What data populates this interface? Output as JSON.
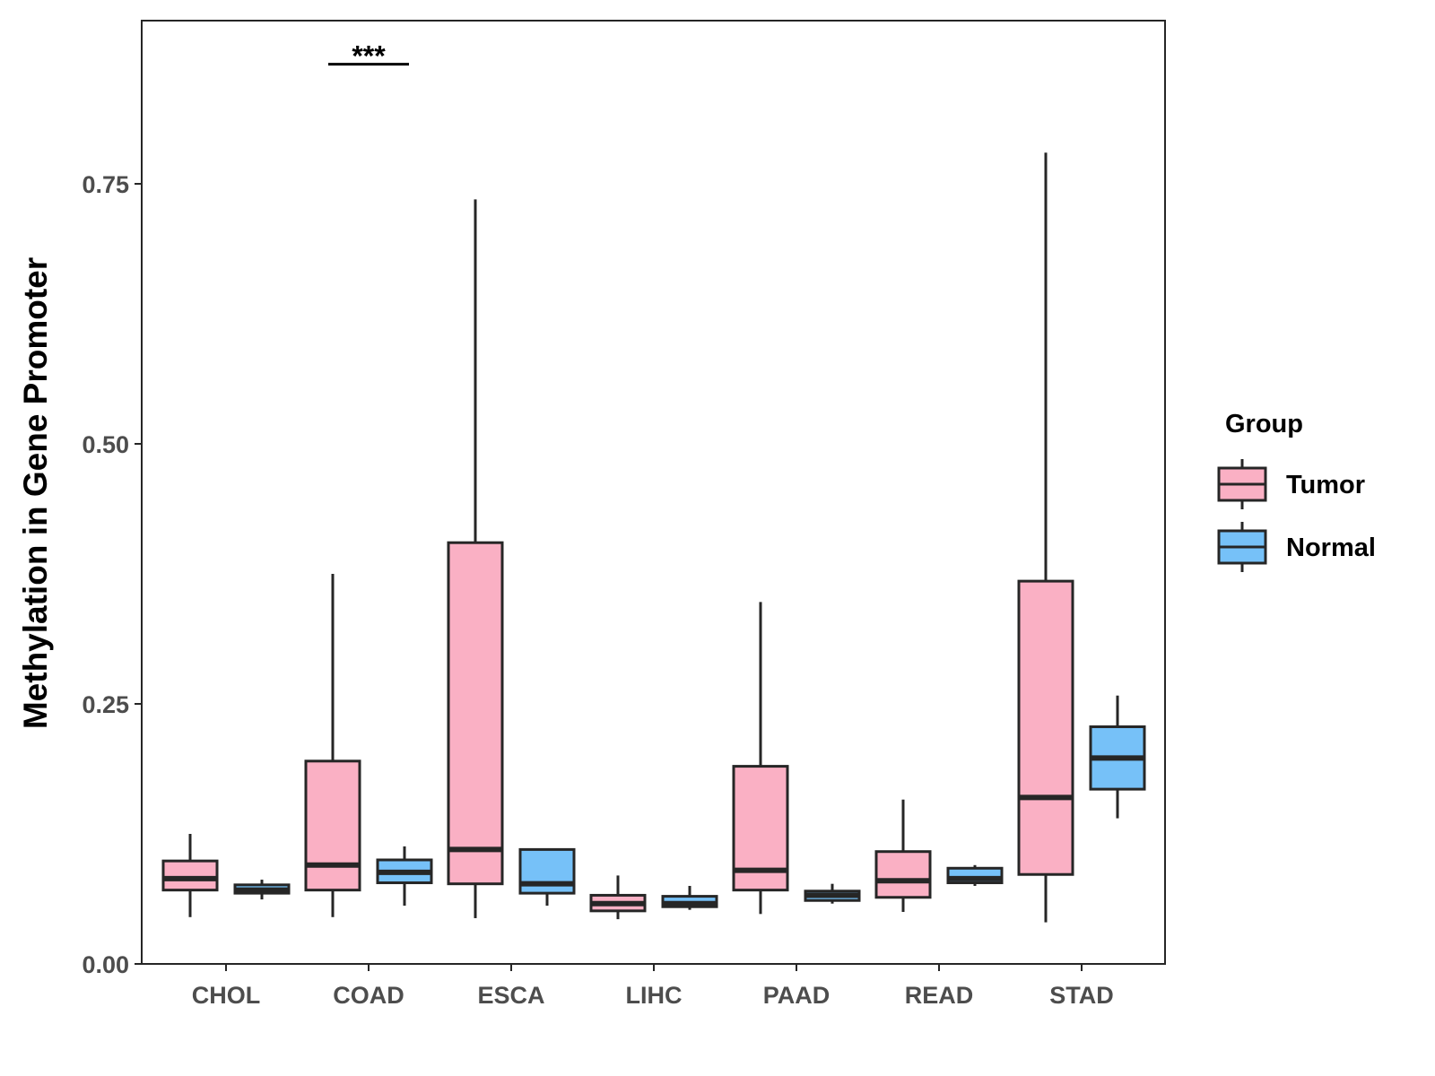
{
  "colors": {
    "tumor": "#FAB0C4",
    "normal": "#76C1F8",
    "stroke": "#262626",
    "axis_text": "#4d4d4d"
  },
  "chart_data": {
    "type": "boxplot",
    "title": "",
    "xlabel": "",
    "ylabel": "Methylation in Gene Promoter",
    "ylim": [
      0,
      0.9
    ],
    "yticks": [
      0.0,
      0.25,
      0.5,
      0.75
    ],
    "ytick_labels": [
      "0.00",
      "0.25",
      "0.50",
      "0.75"
    ],
    "categories": [
      "CHOL",
      "COAD",
      "ESCA",
      "LIHC",
      "PAAD",
      "READ",
      "STAD"
    ],
    "legend": {
      "title": "Group",
      "position": "right",
      "entries": [
        "Tumor",
        "Normal"
      ]
    },
    "series": [
      {
        "name": "Tumor",
        "color": "#FAB0C4",
        "boxes": [
          {
            "category": "CHOL",
            "whisker_low": 0.045,
            "q1": 0.071,
            "median": 0.082,
            "q3": 0.099,
            "whisker_high": 0.125
          },
          {
            "category": "COAD",
            "whisker_low": 0.045,
            "q1": 0.071,
            "median": 0.095,
            "q3": 0.195,
            "whisker_high": 0.375
          },
          {
            "category": "ESCA",
            "whisker_low": 0.044,
            "q1": 0.077,
            "median": 0.11,
            "q3": 0.405,
            "whisker_high": 0.735
          },
          {
            "category": "LIHC",
            "whisker_low": 0.043,
            "q1": 0.051,
            "median": 0.058,
            "q3": 0.066,
            "whisker_high": 0.085
          },
          {
            "category": "PAAD",
            "whisker_low": 0.048,
            "q1": 0.071,
            "median": 0.09,
            "q3": 0.19,
            "whisker_high": 0.348
          },
          {
            "category": "READ",
            "whisker_low": 0.05,
            "q1": 0.064,
            "median": 0.08,
            "q3": 0.108,
            "whisker_high": 0.158
          },
          {
            "category": "STAD",
            "whisker_low": 0.04,
            "q1": 0.086,
            "median": 0.16,
            "q3": 0.368,
            "whisker_high": 0.78
          }
        ]
      },
      {
        "name": "Normal",
        "color": "#76C1F8",
        "boxes": [
          {
            "category": "CHOL",
            "whisker_low": 0.062,
            "q1": 0.068,
            "median": 0.071,
            "q3": 0.076,
            "whisker_high": 0.081
          },
          {
            "category": "COAD",
            "whisker_low": 0.056,
            "q1": 0.078,
            "median": 0.088,
            "q3": 0.1,
            "whisker_high": 0.113
          },
          {
            "category": "ESCA",
            "whisker_low": 0.056,
            "q1": 0.068,
            "median": 0.077,
            "q3": 0.11,
            "whisker_high": 0.11
          },
          {
            "category": "LIHC",
            "whisker_low": 0.052,
            "q1": 0.055,
            "median": 0.058,
            "q3": 0.065,
            "whisker_high": 0.075
          },
          {
            "category": "PAAD",
            "whisker_low": 0.058,
            "q1": 0.061,
            "median": 0.066,
            "q3": 0.07,
            "whisker_high": 0.077
          },
          {
            "category": "READ",
            "whisker_low": 0.075,
            "q1": 0.078,
            "median": 0.082,
            "q3": 0.092,
            "whisker_high": 0.095
          },
          {
            "category": "STAD",
            "whisker_low": 0.14,
            "q1": 0.168,
            "median": 0.198,
            "q3": 0.228,
            "whisker_high": 0.258
          }
        ]
      }
    ],
    "annotations": [
      {
        "category": "COAD",
        "text": "***",
        "y": 0.865
      }
    ]
  }
}
